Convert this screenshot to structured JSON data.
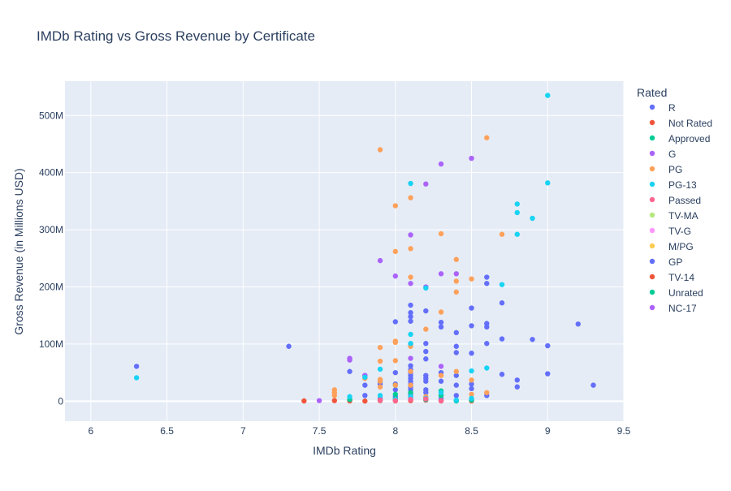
{
  "chart_data": {
    "type": "scatter",
    "title": "IMDb Rating vs Gross Revenue by Certificate",
    "xlabel": "IMDb Rating",
    "ylabel": "Gross Revenue (in Millions USD)",
    "xlim": [
      5.83,
      9.5
    ],
    "ylim": [
      -35,
      560
    ],
    "x_ticks": [
      {
        "value": 6,
        "label": "6"
      },
      {
        "value": 6.5,
        "label": "6.5"
      },
      {
        "value": 7,
        "label": "7"
      },
      {
        "value": 7.5,
        "label": "7.5"
      },
      {
        "value": 8,
        "label": "8"
      },
      {
        "value": 8.5,
        "label": "8.5"
      },
      {
        "value": 9,
        "label": "9"
      },
      {
        "value": 9.5,
        "label": "9.5"
      }
    ],
    "y_ticks": [
      {
        "value": 0,
        "label": "0"
      },
      {
        "value": 100,
        "label": "100M"
      },
      {
        "value": 200,
        "label": "200M"
      },
      {
        "value": 300,
        "label": "300M"
      },
      {
        "value": 400,
        "label": "400M"
      },
      {
        "value": 500,
        "label": "500M"
      }
    ],
    "grid": true,
    "legend_title": "Rated",
    "legend_position": "right",
    "series": [
      {
        "name": "R",
        "color": "#636efa",
        "points": [
          [
            6.3,
            61
          ],
          [
            7.3,
            96
          ],
          [
            7.7,
            52
          ],
          [
            7.8,
            45
          ],
          [
            7.8,
            28
          ],
          [
            7.8,
            10
          ],
          [
            7.9,
            34
          ],
          [
            7.9,
            30
          ],
          [
            7.9,
            5
          ],
          [
            8.0,
            139
          ],
          [
            8.0,
            50
          ],
          [
            8.0,
            30
          ],
          [
            8.0,
            20
          ],
          [
            8.0,
            8
          ],
          [
            8.0,
            2
          ],
          [
            8.1,
            168
          ],
          [
            8.1,
            155
          ],
          [
            8.1,
            148
          ],
          [
            8.1,
            140
          ],
          [
            8.1,
            100
          ],
          [
            8.1,
            62
          ],
          [
            8.1,
            55
          ],
          [
            8.1,
            50
          ],
          [
            8.1,
            45
          ],
          [
            8.1,
            40
          ],
          [
            8.1,
            35
          ],
          [
            8.1,
            30
          ],
          [
            8.1,
            25
          ],
          [
            8.1,
            20
          ],
          [
            8.1,
            12
          ],
          [
            8.1,
            8
          ],
          [
            8.1,
            3
          ],
          [
            8.2,
            158
          ],
          [
            8.2,
            101
          ],
          [
            8.2,
            87
          ],
          [
            8.2,
            74
          ],
          [
            8.2,
            45
          ],
          [
            8.2,
            40
          ],
          [
            8.2,
            35
          ],
          [
            8.2,
            20
          ],
          [
            8.2,
            15
          ],
          [
            8.2,
            5
          ],
          [
            8.3,
            138
          ],
          [
            8.3,
            130
          ],
          [
            8.3,
            50
          ],
          [
            8.3,
            35
          ],
          [
            8.3,
            10
          ],
          [
            8.3,
            4
          ],
          [
            8.4,
            120
          ],
          [
            8.4,
            96
          ],
          [
            8.4,
            85
          ],
          [
            8.4,
            45
          ],
          [
            8.4,
            28
          ],
          [
            8.4,
            10
          ],
          [
            8.5,
            163
          ],
          [
            8.5,
            132
          ],
          [
            8.5,
            84
          ],
          [
            8.5,
            30
          ],
          [
            8.5,
            22
          ],
          [
            8.6,
            217
          ],
          [
            8.6,
            206
          ],
          [
            8.6,
            136
          ],
          [
            8.6,
            130
          ],
          [
            8.6,
            101
          ],
          [
            8.6,
            10
          ],
          [
            8.7,
            172
          ],
          [
            8.7,
            109
          ],
          [
            8.7,
            47
          ],
          [
            8.8,
            37
          ],
          [
            8.8,
            25
          ],
          [
            8.9,
            108
          ],
          [
            9.0,
            97
          ],
          [
            9.0,
            48
          ],
          [
            9.2,
            135
          ],
          [
            9.3,
            28
          ]
        ]
      },
      {
        "name": "Not Rated",
        "color": "#ef553b",
        "points": [
          [
            7.4,
            0.5
          ],
          [
            7.6,
            1
          ],
          [
            7.7,
            0.5
          ],
          [
            7.8,
            0.3
          ],
          [
            7.9,
            1
          ],
          [
            8.0,
            0.5
          ],
          [
            8.1,
            1
          ],
          [
            8.2,
            2
          ],
          [
            8.3,
            0.5
          ],
          [
            8.4,
            1
          ],
          [
            8.5,
            0.5
          ]
        ]
      },
      {
        "name": "Approved",
        "color": "#00cc96",
        "points": [
          [
            7.7,
            3
          ],
          [
            7.9,
            2
          ],
          [
            8.0,
            28
          ],
          [
            8.0,
            12
          ],
          [
            8.0,
            4
          ],
          [
            8.1,
            15
          ],
          [
            8.2,
            3
          ],
          [
            8.3,
            18
          ],
          [
            8.3,
            10
          ],
          [
            8.4,
            0.5
          ],
          [
            8.5,
            2
          ]
        ]
      },
      {
        "name": "G",
        "color": "#ab63fa",
        "points": [
          [
            7.5,
            1
          ],
          [
            7.7,
            75
          ],
          [
            7.7,
            72
          ],
          [
            7.8,
            45
          ],
          [
            7.9,
            246
          ],
          [
            8.0,
            219
          ],
          [
            8.1,
            291
          ],
          [
            8.1,
            206
          ],
          [
            8.1,
            75
          ],
          [
            8.2,
            380
          ],
          [
            8.2,
            200
          ],
          [
            8.3,
            415
          ],
          [
            8.3,
            223
          ],
          [
            8.3,
            61
          ],
          [
            8.4,
            223
          ],
          [
            8.5,
            425
          ]
        ]
      },
      {
        "name": "PG",
        "color": "#ffa15a",
        "points": [
          [
            7.6,
            20
          ],
          [
            7.6,
            15
          ],
          [
            7.6,
            10
          ],
          [
            7.8,
            40
          ],
          [
            7.9,
            440
          ],
          [
            7.9,
            94
          ],
          [
            7.9,
            70
          ],
          [
            7.9,
            38
          ],
          [
            7.9,
            35
          ],
          [
            7.9,
            25
          ],
          [
            8.0,
            342
          ],
          [
            8.0,
            262
          ],
          [
            8.0,
            105
          ],
          [
            8.0,
            103
          ],
          [
            8.0,
            71
          ],
          [
            8.0,
            28
          ],
          [
            8.1,
            356
          ],
          [
            8.1,
            267
          ],
          [
            8.1,
            217
          ],
          [
            8.1,
            96
          ],
          [
            8.1,
            52
          ],
          [
            8.1,
            28
          ],
          [
            8.2,
            126
          ],
          [
            8.2,
            8
          ],
          [
            8.3,
            293
          ],
          [
            8.3,
            156
          ],
          [
            8.3,
            45
          ],
          [
            8.4,
            248
          ],
          [
            8.4,
            210
          ],
          [
            8.4,
            191
          ],
          [
            8.4,
            52
          ],
          [
            8.5,
            214
          ],
          [
            8.5,
            37
          ],
          [
            8.5,
            12
          ],
          [
            8.6,
            461
          ],
          [
            8.6,
            15
          ],
          [
            8.7,
            292
          ]
        ]
      },
      {
        "name": "PG-13",
        "color": "#19d3f3",
        "points": [
          [
            6.3,
            41
          ],
          [
            7.7,
            8
          ],
          [
            7.8,
            42
          ],
          [
            7.9,
            56
          ],
          [
            7.9,
            10
          ],
          [
            8.0,
            3
          ],
          [
            8.1,
            381
          ],
          [
            8.1,
            117
          ],
          [
            8.1,
            101
          ],
          [
            8.1,
            8
          ],
          [
            8.2,
            198
          ],
          [
            8.2,
            5
          ],
          [
            8.3,
            15
          ],
          [
            8.4,
            2
          ],
          [
            8.5,
            53
          ],
          [
            8.5,
            5
          ],
          [
            8.6,
            58
          ],
          [
            8.7,
            204
          ],
          [
            8.8,
            345
          ],
          [
            8.8,
            330
          ],
          [
            8.8,
            292
          ],
          [
            8.9,
            320
          ],
          [
            9.0,
            535
          ],
          [
            9.0,
            382
          ]
        ]
      },
      {
        "name": "Passed",
        "color": "#ff6692",
        "points": [
          [
            7.9,
            2
          ],
          [
            8.0,
            1
          ],
          [
            8.1,
            3
          ],
          [
            8.2,
            4
          ],
          [
            8.3,
            1
          ]
        ]
      },
      {
        "name": "TV-MA",
        "color": "#b6e880",
        "points": []
      },
      {
        "name": "TV-G",
        "color": "#ff97ff",
        "points": []
      },
      {
        "name": "M/PG",
        "color": "#fecb52",
        "points": []
      },
      {
        "name": "GP",
        "color": "#636efa",
        "points": []
      },
      {
        "name": "TV-14",
        "color": "#ef553b",
        "points": []
      },
      {
        "name": "Unrated",
        "color": "#00cc96",
        "points": []
      },
      {
        "name": "NC-17",
        "color": "#ab63fa",
        "points": []
      }
    ]
  }
}
